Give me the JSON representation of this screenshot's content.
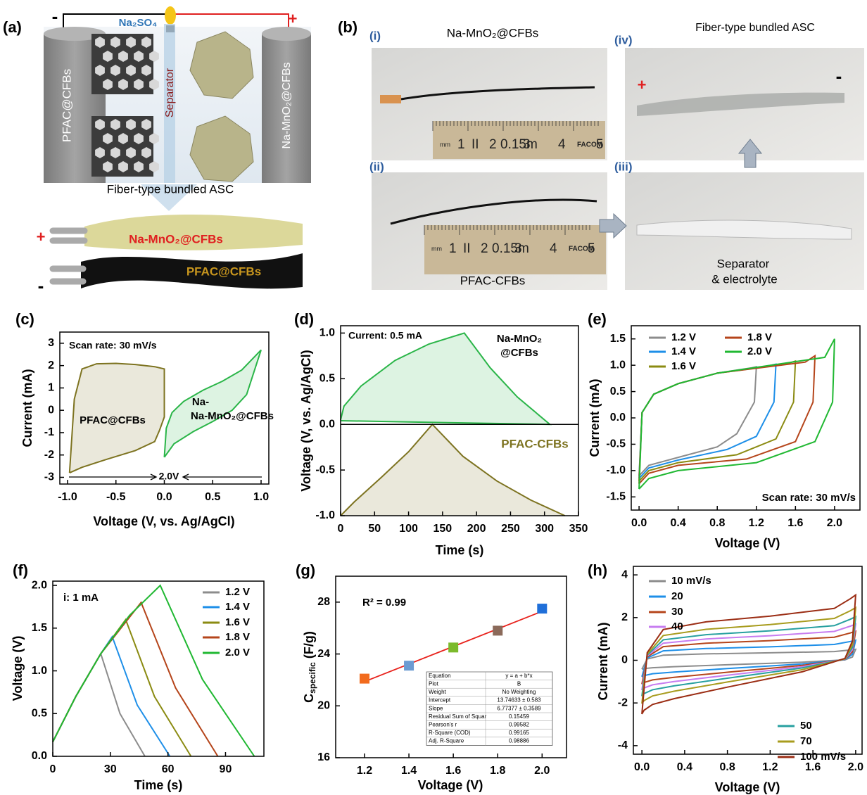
{
  "figure": {
    "panel_a": {
      "label": "(a)",
      "minus": "-",
      "plus": "+",
      "electrolyte": "Na₂SO₄",
      "left_electrode": "PFAC@CFBs",
      "separator": "Separator",
      "right_electrode": "Na-MnO₂@CFBs",
      "caption": "Fiber-type bundled ASC",
      "bundle_plus": "+",
      "bundle_positive": "Na-MnO₂@CFBs",
      "bundle_minus": "-",
      "bundle_negative": "PFAC@CFBs"
    },
    "panel_b": {
      "label": "(b)",
      "photo_i": {
        "label": "(i)",
        "title": "Na-MnO₂@CFBs"
      },
      "photo_ii": {
        "label": "(ii)",
        "caption": "PFAC-CFBs"
      },
      "photo_iii": {
        "label": "(iii)",
        "caption": [
          "Separator",
          "& electrolyte"
        ]
      },
      "photo_iv": {
        "label": "(iv)",
        "title": "Fiber-type bundled ASC",
        "plus": "+",
        "minus": "-"
      },
      "ruler": [
        "mm",
        "1",
        "II",
        "2",
        "0.15m",
        "3",
        "4",
        "FACOM",
        "5"
      ]
    }
  },
  "chart_data": [
    {
      "type": "line",
      "panel_label": "(c)",
      "x_label": "Voltage (V, vs. Ag/AgCl)",
      "y_label": "Current (mA)",
      "xlim": [
        -1.08,
        1.08
      ],
      "ylim": [
        -3.3,
        3.5
      ],
      "xticks": [
        {
          "value": -1,
          "label": "-1.0"
        },
        -0.5,
        {
          "value": 0,
          "label": "0.0"
        },
        0.5,
        {
          "value": 1,
          "label": "1.0"
        }
      ],
      "yticks": [
        -3,
        -2,
        -1,
        0,
        1,
        2,
        3
      ],
      "annotations": [
        "Scan rate: 30 mV/s",
        "PFAC@CFBs",
        "Na-",
        "Na-MnO₂@CFBs",
        "2.0V"
      ],
      "series": [
        {
          "color": "#7d7320",
          "shaded": true,
          "x": [
            -0.98,
            -0.93,
            -0.85,
            -0.7,
            -0.5,
            -0.3,
            -0.1,
            0.0,
            0.0,
            -0.05,
            -0.1,
            -0.3,
            -0.6,
            -0.85,
            -0.98
          ],
          "values": [
            -2.8,
            0.5,
            1.85,
            2.08,
            2.1,
            2.05,
            1.95,
            1.85,
            -0.3,
            -0.9,
            -1.4,
            -1.8,
            -2.2,
            -2.55,
            -2.8
          ]
        },
        {
          "color": "#2ab548",
          "shaded": true,
          "x": [
            0.0,
            0.1,
            0.3,
            0.5,
            0.7,
            0.85,
            1.0,
            0.8,
            0.6,
            0.4,
            0.2,
            0.08,
            0.02,
            0.0
          ],
          "values": [
            -2.1,
            -1.5,
            -0.95,
            -0.5,
            0.0,
            0.7,
            2.7,
            1.8,
            1.3,
            0.9,
            0.4,
            -0.1,
            -0.8,
            -2.1
          ]
        }
      ]
    },
    {
      "type": "line",
      "panel_label": "(d)",
      "x_label": "Time (s)",
      "y_label": "Voltage (V, vs. Ag/AgCl)",
      "xlim": [
        0,
        350
      ],
      "ylim": [
        -1,
        1.08
      ],
      "xticks": [
        0,
        50,
        100,
        150,
        200,
        250,
        300,
        350
      ],
      "yticks": [
        {
          "value": -1,
          "label": "-1.0"
        },
        -0.5,
        {
          "value": 0,
          "label": "0.0"
        },
        0.5,
        {
          "value": 1,
          "label": "1.0"
        }
      ],
      "reference_line": 0,
      "annotations": [
        "Current: 0.5 mA",
        "Na-MnO₂",
        "@CFBs",
        "PFAC-CFBs"
      ],
      "series": [
        {
          "color": "#2ab548",
          "shaded": true,
          "x": [
            0,
            5,
            30,
            80,
            130,
            182,
            220,
            260,
            308,
            150,
            0
          ],
          "values": [
            0.05,
            0.2,
            0.42,
            0.7,
            0.88,
            1.0,
            0.62,
            0.3,
            0.0,
            0.02,
            0.04
          ]
        },
        {
          "color": "#7d7320",
          "shaded": true,
          "x": [
            0,
            20,
            60,
            100,
            135,
            180,
            230,
            280,
            330
          ],
          "values": [
            -1.0,
            -0.85,
            -0.58,
            -0.3,
            0.0,
            -0.35,
            -0.62,
            -0.83,
            -1.0
          ]
        }
      ]
    },
    {
      "type": "line",
      "panel_label": "(e)",
      "x_label": "Voltage (V)",
      "y_label": "Current (mA)",
      "xlim": [
        -0.08,
        2.26
      ],
      "ylim": [
        -1.75,
        1.75
      ],
      "xticks": [
        {
          "value": 0,
          "label": "0.0"
        },
        0.4,
        0.8,
        1.2,
        1.6,
        {
          "value": 2,
          "label": "2.0"
        }
      ],
      "yticks": [
        -1.5,
        {
          "value": -1,
          "label": "-1.0"
        },
        -0.5,
        {
          "value": 0,
          "label": "0.0"
        },
        0.5,
        {
          "value": 1,
          "label": "1.0"
        },
        1.5
      ],
      "annotations": [
        "Scan rate: 30 mV/s"
      ],
      "series": [
        {
          "name": "1.2 V",
          "color": "#8c8c8c",
          "x": [
            0,
            0.03,
            0.15,
            0.4,
            0.8,
            1.15,
            1.2,
            1.18,
            1.0,
            0.8,
            0.4,
            0.1,
            0
          ],
          "values": [
            -1.1,
            0.1,
            0.45,
            0.65,
            0.85,
            0.95,
            0.97,
            0.3,
            -0.3,
            -0.55,
            -0.75,
            -0.9,
            -1.1
          ]
        },
        {
          "name": "1.4 V",
          "color": "#1e8fe8",
          "x": [
            0,
            0.03,
            0.15,
            0.4,
            0.8,
            1.3,
            1.4,
            1.38,
            1.2,
            0.9,
            0.4,
            0.1,
            0
          ],
          "values": [
            -1.15,
            0.1,
            0.45,
            0.65,
            0.85,
            0.98,
            1.02,
            0.3,
            -0.35,
            -0.6,
            -0.8,
            -0.95,
            -1.15
          ]
        },
        {
          "name": "1.6 V",
          "color": "#8b8b12",
          "x": [
            0,
            0.03,
            0.15,
            0.4,
            0.8,
            1.5,
            1.6,
            1.58,
            1.4,
            1.0,
            0.4,
            0.1,
            0
          ],
          "values": [
            -1.2,
            0.1,
            0.45,
            0.65,
            0.85,
            1.02,
            1.08,
            0.3,
            -0.4,
            -0.7,
            -0.85,
            -1.0,
            -1.2
          ]
        },
        {
          "name": "1.8 V",
          "color": "#b5451b",
          "x": [
            0,
            0.03,
            0.15,
            0.4,
            0.8,
            1.7,
            1.8,
            1.78,
            1.6,
            1.1,
            0.4,
            0.1,
            0
          ],
          "values": [
            -1.25,
            0.1,
            0.45,
            0.65,
            0.85,
            1.06,
            1.18,
            0.3,
            -0.45,
            -0.78,
            -0.9,
            -1.05,
            -1.25
          ]
        },
        {
          "name": "2.0 V",
          "color": "#20b832",
          "x": [
            0,
            0.03,
            0.15,
            0.4,
            0.8,
            1.9,
            2.0,
            1.98,
            1.8,
            1.2,
            0.4,
            0.1,
            0
          ],
          "values": [
            -1.35,
            0.1,
            0.45,
            0.65,
            0.85,
            1.15,
            1.5,
            0.3,
            -0.45,
            -0.85,
            -1.0,
            -1.15,
            -1.35
          ]
        }
      ]
    },
    {
      "type": "line",
      "panel_label": "(f)",
      "x_label": "Time (s)",
      "y_label": "Voltage (V)",
      "xlim": [
        0,
        110
      ],
      "ylim": [
        0,
        2.05
      ],
      "xticks": [
        0,
        30,
        60,
        90
      ],
      "yticks": [
        {
          "value": 0,
          "label": "0.0"
        },
        0.5,
        {
          "value": 1,
          "label": "1.0"
        },
        1.5,
        {
          "value": 2,
          "label": "2.0"
        }
      ],
      "annotations": [
        "i: 1 mA"
      ],
      "series": [
        {
          "name": "1.2 V",
          "color": "#8c8c8c",
          "x": [
            0,
            12,
            25,
            35,
            48
          ],
          "values": [
            0.17,
            0.7,
            1.2,
            0.5,
            0
          ]
        },
        {
          "name": "1.4 V",
          "color": "#1e8fe8",
          "x": [
            0,
            12,
            25,
            31,
            44,
            61
          ],
          "values": [
            0.17,
            0.7,
            1.2,
            1.4,
            0.6,
            0
          ]
        },
        {
          "name": "1.6 V",
          "color": "#8b8b12",
          "x": [
            0,
            12,
            25,
            38,
            53,
            72
          ],
          "values": [
            0.17,
            0.7,
            1.2,
            1.6,
            0.7,
            0
          ]
        },
        {
          "name": "1.8 V",
          "color": "#b5451b",
          "x": [
            0,
            12,
            25,
            46,
            64,
            86
          ],
          "values": [
            0.17,
            0.7,
            1.2,
            1.8,
            0.8,
            0
          ]
        },
        {
          "name": "2.0 V",
          "color": "#20b832",
          "x": [
            0,
            12,
            25,
            40,
            56,
            78,
            105
          ],
          "values": [
            0.17,
            0.7,
            1.2,
            1.65,
            2.0,
            0.9,
            0
          ]
        }
      ]
    },
    {
      "type": "scatter",
      "panel_label": "(g)",
      "x_label": "Voltage (V)",
      "y_label": "C",
      "y_label_subscript": "specific",
      "y_label_unit": " (F/g)",
      "xlim": [
        1.07,
        2.11
      ],
      "ylim": [
        16,
        30
      ],
      "xticks": [
        1.2,
        1.4,
        1.6,
        1.8,
        {
          "value": 2,
          "label": "2.0"
        }
      ],
      "yticks": [
        16,
        20,
        24,
        28
      ],
      "annotations": [
        "R² = 0.99"
      ],
      "x": [
        1.2,
        1.4,
        1.6,
        1.8,
        2.0
      ],
      "values": [
        22.1,
        23.1,
        24.5,
        25.8,
        27.5
      ],
      "colors": [
        "#f26b1d",
        "#6c9bd2",
        "#7cba2c",
        "#8b6a5a",
        "#1f6fd9"
      ],
      "fit": {
        "x": [
          1.2,
          2.0
        ],
        "values": [
          21.87,
          27.29
        ],
        "color": "#e8221c"
      },
      "fit_table": [
        [
          "Equation",
          "y = a + b*x"
        ],
        [
          "Plot",
          "B"
        ],
        [
          "Weight",
          "No Weighting"
        ],
        [
          "Intercept",
          "13.74633 ± 0.583"
        ],
        [
          "Slope",
          "6.77377 ± 0.3589"
        ],
        [
          "Residual Sum of Squar",
          "0.15459"
        ],
        [
          "Pearson's r",
          "0.99582"
        ],
        [
          "R-Square (COD)",
          "0.99165"
        ],
        [
          "Adj. R-Square",
          "0.98886"
        ]
      ]
    },
    {
      "type": "line",
      "panel_label": "(h)",
      "x_label": "Voltage (V)",
      "y_label": "Current (mA)",
      "xlim": [
        -0.08,
        2.06
      ],
      "ylim": [
        -4.4,
        4.4
      ],
      "xticks": [
        {
          "value": 0,
          "label": "0.0"
        },
        0.4,
        0.8,
        1.2,
        1.6,
        {
          "value": 2,
          "label": "2.0"
        }
      ],
      "yticks": [
        -4,
        -2,
        0,
        2,
        4
      ],
      "x": [
        0,
        0.05,
        0.2,
        0.6,
        1.2,
        1.8,
        1.95,
        2.0,
        1.97,
        1.9,
        1.5,
        0.8,
        0.3,
        0.1,
        0.02,
        0
      ],
      "series": [
        {
          "name": "10 mV/s",
          "color": "#8c8c8c",
          "values": [
            -0.42,
            0.06,
            0.24,
            0.3,
            0.35,
            0.41,
            0.48,
            0.51,
            0.15,
            0.02,
            -0.09,
            -0.21,
            -0.3,
            -0.35,
            -0.39,
            -0.42
          ]
        },
        {
          "name": "20",
          "color": "#1e8fe8",
          "values": [
            -0.77,
            0.11,
            0.44,
            0.55,
            0.63,
            0.74,
            0.88,
            0.94,
            0.28,
            0.03,
            -0.17,
            -0.39,
            -0.55,
            -0.63,
            -0.72,
            -0.77
          ]
        },
        {
          "name": "30",
          "color": "#b5451b",
          "values": [
            -1.12,
            0.16,
            0.64,
            0.8,
            0.92,
            1.08,
            1.28,
            1.36,
            0.4,
            0.04,
            -0.24,
            -0.56,
            -0.8,
            -0.92,
            -1.04,
            -1.12
          ]
        },
        {
          "name": "40",
          "color": "#c77df0",
          "values": [
            -1.4,
            0.2,
            0.8,
            1.0,
            1.15,
            1.35,
            1.6,
            1.7,
            0.5,
            0.05,
            -0.3,
            -0.7,
            -1.0,
            -1.15,
            -1.3,
            -1.4
          ]
        },
        {
          "name": "50",
          "color": "#27a0a0",
          "values": [
            -1.68,
            0.24,
            0.96,
            1.2,
            1.38,
            1.62,
            1.92,
            2.04,
            0.6,
            0.06,
            -0.36,
            -0.84,
            -1.2,
            -1.38,
            -1.56,
            -1.68
          ]
        },
        {
          "name": "70",
          "color": "#a89c1e",
          "values": [
            -2.03,
            0.29,
            1.16,
            1.45,
            1.67,
            1.96,
            2.32,
            2.47,
            0.73,
            0.07,
            -0.44,
            -1.02,
            -1.45,
            -1.67,
            -1.89,
            -2.03
          ]
        },
        {
          "name": "100 mV/s",
          "color": "#9b2d14",
          "values": [
            -2.52,
            0.36,
            1.44,
            1.8,
            2.07,
            2.43,
            2.88,
            3.06,
            0.9,
            0.09,
            -0.54,
            -1.26,
            -1.8,
            -2.07,
            -2.34,
            -2.52
          ]
        }
      ]
    }
  ]
}
